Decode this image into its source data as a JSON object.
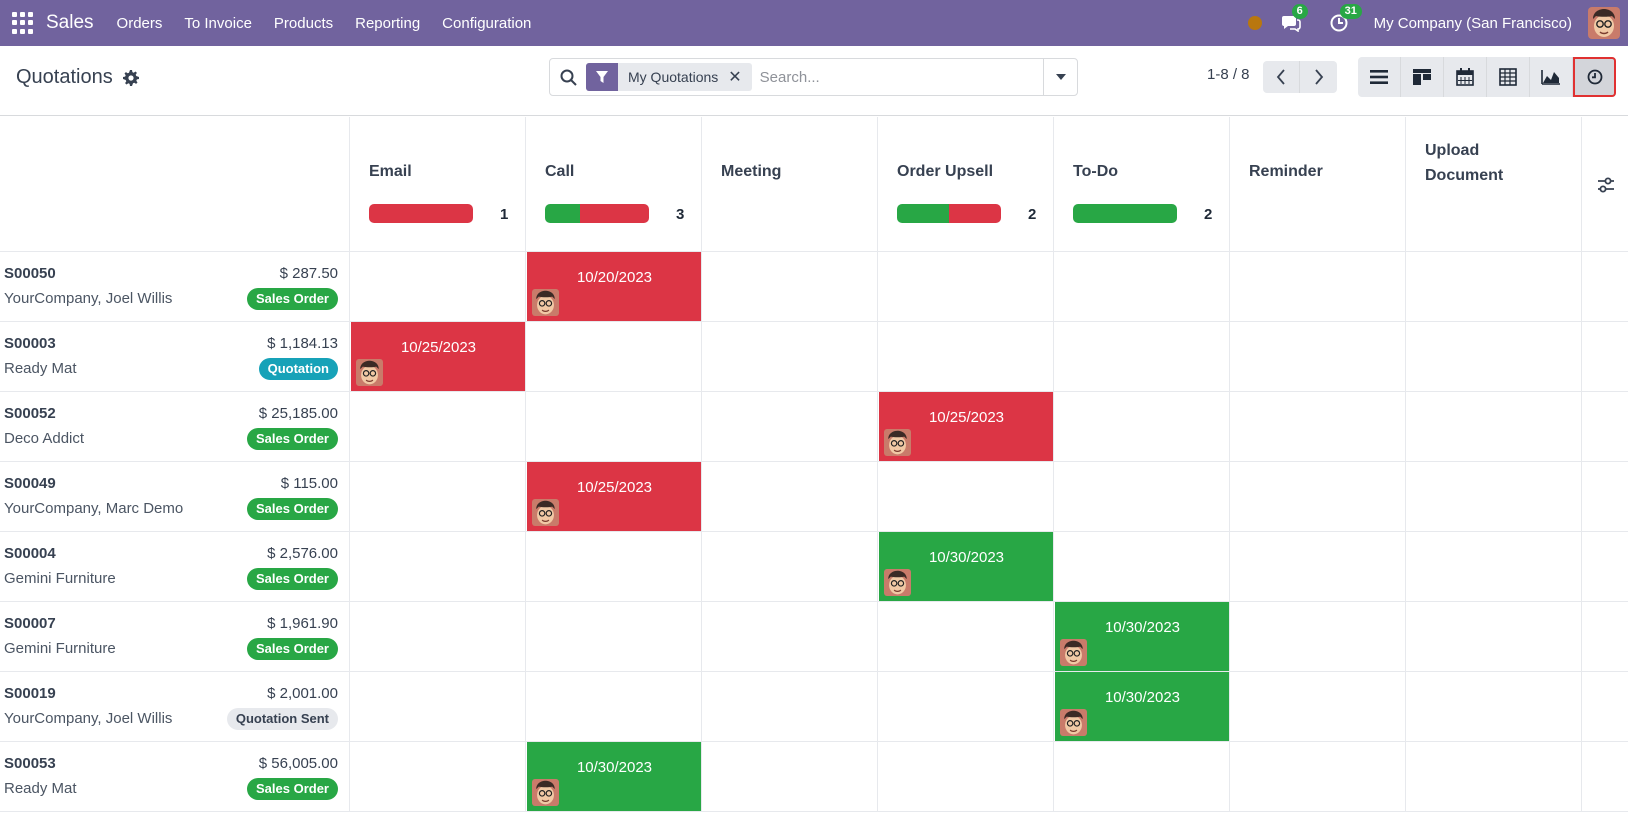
{
  "navbar": {
    "app_name": "Sales",
    "menu": [
      "Orders",
      "To Invoice",
      "Products",
      "Reporting",
      "Configuration"
    ],
    "messages_badge": "6",
    "activities_badge": "31",
    "company": "My Company (San Francisco)"
  },
  "control": {
    "title": "Quotations",
    "facet": "My Quotations",
    "search_placeholder": "Search...",
    "pager": "1-8 / 8"
  },
  "views": [
    "list-view-icon",
    "kanban-view-icon",
    "calendar-view-icon",
    "pivot-view-icon",
    "graph-view-icon",
    "activity-view-icon"
  ],
  "colors": {
    "brand": "#71639e",
    "overdue": "#dc3545",
    "planned": "#28a745",
    "quotation": "#17a2b8",
    "sent": "#e7e9ed"
  },
  "activity_types": [
    {
      "name": "Email",
      "count": "1",
      "green": 0,
      "red": 1
    },
    {
      "name": "Call",
      "count": "3",
      "green": 1,
      "red": 2
    },
    {
      "name": "Meeting",
      "count": "",
      "green": 0,
      "red": 0
    },
    {
      "name": "Order Upsell",
      "count": "2",
      "green": 1,
      "red": 1
    },
    {
      "name": "To-Do",
      "count": "2",
      "green": 2,
      "red": 0
    },
    {
      "name": "Reminder",
      "count": "",
      "green": 0,
      "red": 0
    },
    {
      "name": "Upload Document",
      "count": "",
      "green": 0,
      "red": 0
    }
  ],
  "records": [
    {
      "name": "S00050",
      "partner": "YourCompany, Joel Willis",
      "amount": "$ 287.50",
      "state": "Sales Order",
      "state_kind": "sale",
      "activity": {
        "col": 1,
        "date": "10/20/2023",
        "status": "overdue"
      }
    },
    {
      "name": "S00003",
      "partner": "Ready Mat",
      "amount": "$ 1,184.13",
      "state": "Quotation",
      "state_kind": "quotation",
      "activity": {
        "col": 0,
        "date": "10/25/2023",
        "status": "overdue"
      }
    },
    {
      "name": "S00052",
      "partner": "Deco Addict",
      "amount": "$ 25,185.00",
      "state": "Sales Order",
      "state_kind": "sale",
      "activity": {
        "col": 3,
        "date": "10/25/2023",
        "status": "overdue"
      }
    },
    {
      "name": "S00049",
      "partner": "YourCompany, Marc Demo",
      "amount": "$ 115.00",
      "state": "Sales Order",
      "state_kind": "sale",
      "activity": {
        "col": 1,
        "date": "10/25/2023",
        "status": "overdue"
      }
    },
    {
      "name": "S00004",
      "partner": "Gemini Furniture",
      "amount": "$ 2,576.00",
      "state": "Sales Order",
      "state_kind": "sale",
      "activity": {
        "col": 3,
        "date": "10/30/2023",
        "status": "planned"
      }
    },
    {
      "name": "S00007",
      "partner": "Gemini Furniture",
      "amount": "$ 1,961.90",
      "state": "Sales Order",
      "state_kind": "sale",
      "activity": {
        "col": 4,
        "date": "10/30/2023",
        "status": "planned"
      }
    },
    {
      "name": "S00019",
      "partner": "YourCompany, Joel Willis",
      "amount": "$ 2,001.00",
      "state": "Quotation Sent",
      "state_kind": "sent",
      "activity": {
        "col": 4,
        "date": "10/30/2023",
        "status": "planned"
      }
    },
    {
      "name": "S00053",
      "partner": "Ready Mat",
      "amount": "$ 56,005.00",
      "state": "Sales Order",
      "state_kind": "sale",
      "activity": {
        "col": 1,
        "date": "10/30/2023",
        "status": "planned"
      }
    }
  ]
}
